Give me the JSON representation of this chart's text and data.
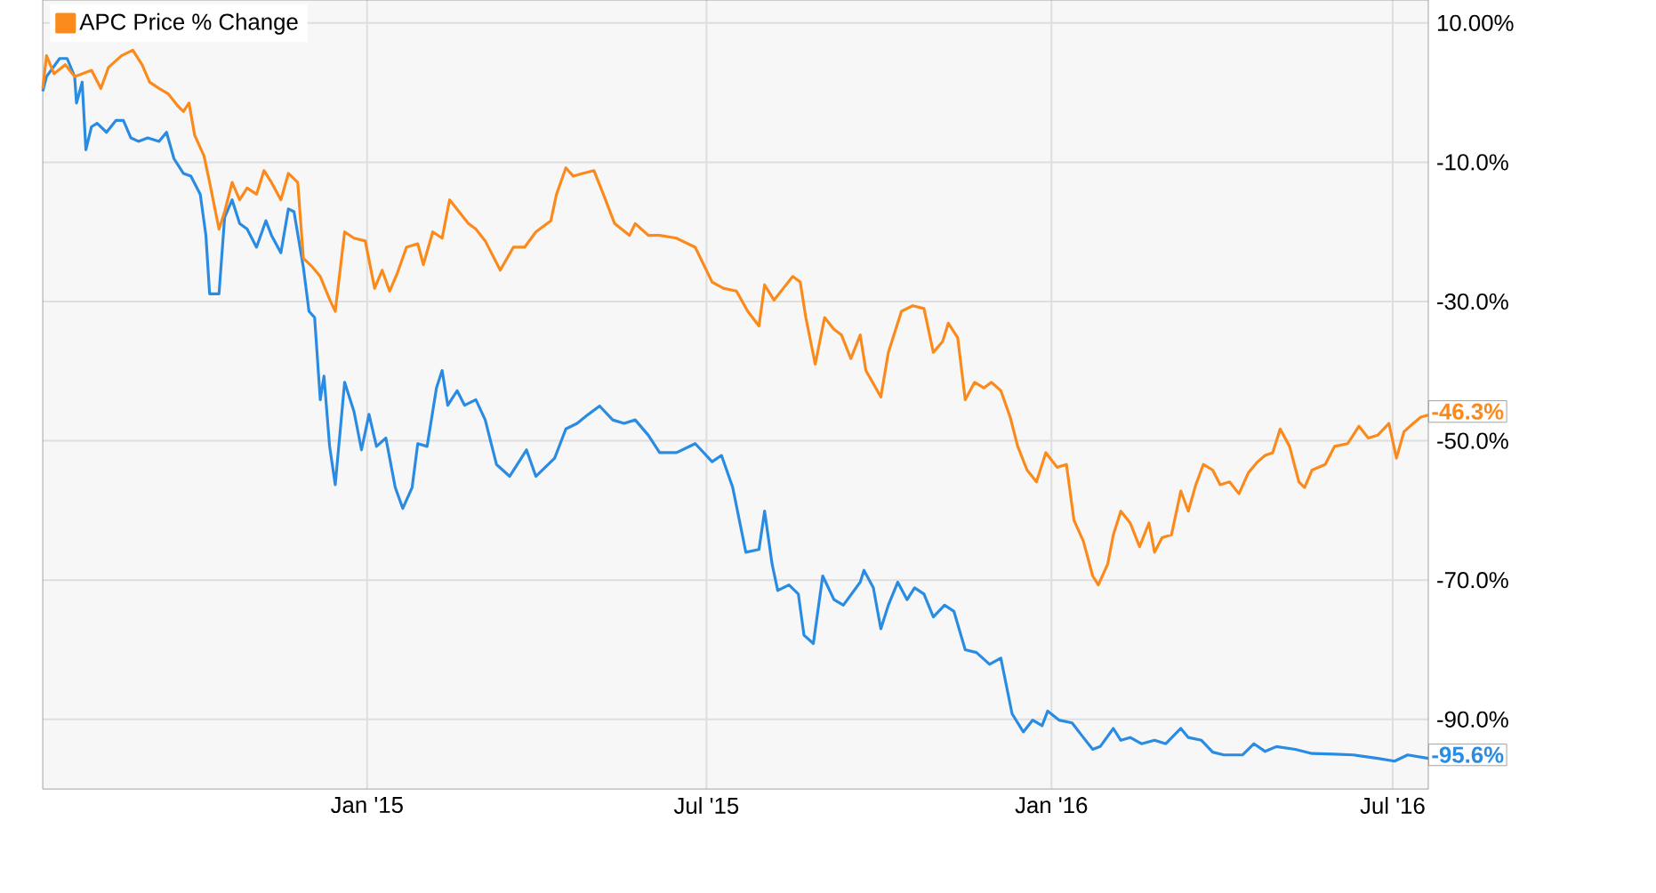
{
  "chart_data": {
    "type": "line",
    "xlim": [
      "2014-07-12",
      "2016-07-20"
    ],
    "xticks": [
      {
        "value": "2015-01-01",
        "label": "Jan '15"
      },
      {
        "value": "2015-07-01",
        "label": "Jul '15"
      },
      {
        "value": "2016-01-01",
        "label": "Jan '16"
      },
      {
        "value": "2016-07-01",
        "label": "Jul '16"
      }
    ],
    "ylim": [
      -100,
      13.3
    ],
    "yticks": [
      {
        "value": 10,
        "label": "10.00%"
      },
      {
        "value": -10,
        "label": "-10.0%"
      },
      {
        "value": -30,
        "label": "-30.0%"
      },
      {
        "value": -50,
        "label": "-50.0%"
      },
      {
        "value": -70,
        "label": "-70.0%"
      },
      {
        "value": -90,
        "label": "-90.0%"
      }
    ],
    "grid": true,
    "legend": "top left",
    "marker": "none",
    "line_style": "solid",
    "series": [
      {
        "color": "#2a8be2",
        "x": [
          "2014-07-12",
          "2014-07-14",
          "2014-07-21",
          "2014-07-25",
          "2014-07-29",
          "2014-07-30",
          "2014-08-02",
          "2014-08-04",
          "2014-08-07",
          "2014-08-10",
          "2014-08-15",
          "2014-08-20",
          "2014-08-24",
          "2014-08-28",
          "2014-09-01",
          "2014-09-06",
          "2014-09-12",
          "2014-09-16",
          "2014-09-20",
          "2014-09-25",
          "2014-09-29",
          "2014-10-04",
          "2014-10-07",
          "2014-10-09",
          "2014-10-14",
          "2014-10-17",
          "2014-10-21",
          "2014-10-25",
          "2014-10-29",
          "2014-11-03",
          "2014-11-08",
          "2014-11-11",
          "2014-11-16",
          "2014-11-20",
          "2014-11-23",
          "2014-11-28",
          "2014-12-01",
          "2014-12-04",
          "2014-12-07",
          "2014-12-09",
          "2014-12-12",
          "2014-12-15",
          "2014-12-20",
          "2014-12-25",
          "2014-12-29",
          "2015-01-02",
          "2015-01-06",
          "2015-01-11",
          "2015-01-16",
          "2015-01-20",
          "2015-01-25",
          "2015-01-28",
          "2015-02-02",
          "2015-02-07",
          "2015-02-10",
          "2015-02-13",
          "2015-02-18",
          "2015-02-22",
          "2015-02-28",
          "2015-03-05",
          "2015-03-11",
          "2015-03-18",
          "2015-03-23",
          "2015-03-27",
          "2015-04-01",
          "2015-04-06",
          "2015-04-11",
          "2015-04-17",
          "2015-04-23",
          "2015-04-29",
          "2015-05-05",
          "2015-05-12",
          "2015-05-18",
          "2015-05-24",
          "2015-05-31",
          "2015-06-06",
          "2015-06-15",
          "2015-06-25",
          "2015-07-04",
          "2015-07-09",
          "2015-07-15",
          "2015-07-22",
          "2015-07-29",
          "2015-08-01",
          "2015-08-05",
          "2015-08-08",
          "2015-08-14",
          "2015-08-19",
          "2015-08-22",
          "2015-08-27",
          "2015-09-01",
          "2015-09-07",
          "2015-09-12",
          "2015-09-21",
          "2015-09-23",
          "2015-09-28",
          "2015-10-02",
          "2015-10-06",
          "2015-10-11",
          "2015-10-16",
          "2015-10-20",
          "2015-10-25",
          "2015-10-30",
          "2015-11-05",
          "2015-11-10",
          "2015-11-16",
          "2015-11-22",
          "2015-11-29",
          "2015-12-05",
          "2015-12-11",
          "2015-12-17",
          "2015-12-22",
          "2015-12-27",
          "2015-12-30",
          "2016-01-05",
          "2016-01-12",
          "2016-01-18",
          "2016-01-23",
          "2016-01-27",
          "2016-02-03",
          "2016-02-07",
          "2016-02-12",
          "2016-02-18",
          "2016-02-25",
          "2016-03-02",
          "2016-03-10",
          "2016-03-14",
          "2016-03-21",
          "2016-03-27",
          "2016-04-02",
          "2016-04-12",
          "2016-04-18",
          "2016-04-24",
          "2016-04-30",
          "2016-05-10",
          "2016-05-19",
          "2016-05-31",
          "2016-06-10",
          "2016-06-23",
          "2016-07-02",
          "2016-07-09",
          "2016-07-20"
        ],
        "values": [
          0.2,
          2.3,
          4.9,
          4.9,
          2.3,
          -1.5,
          1.5,
          -8.2,
          -4.9,
          -4.4,
          -5.7,
          -4.0,
          -4.0,
          -6.5,
          -7.0,
          -6.5,
          -7.0,
          -5.7,
          -9.5,
          -11.6,
          -12.0,
          -14.6,
          -20.5,
          -28.9,
          -28.9,
          -17.9,
          -15.4,
          -18.8,
          -19.6,
          -22.2,
          -18.4,
          -20.5,
          -23.0,
          -16.7,
          -17.1,
          -25.1,
          -31.4,
          -32.3,
          -44.1,
          -40.7,
          -50.8,
          -56.3,
          -41.6,
          -45.8,
          -51.3,
          -46.2,
          -50.8,
          -49.6,
          -56.7,
          -59.7,
          -56.7,
          -50.4,
          -50.8,
          -42.4,
          -39.9,
          -44.9,
          -42.8,
          -44.9,
          -44.1,
          -47.0,
          -53.4,
          -55.1,
          -53.0,
          -51.3,
          -55.1,
          -53.8,
          -52.5,
          -48.3,
          -47.5,
          -46.2,
          -45.0,
          -47.0,
          -47.5,
          -47.0,
          -49.2,
          -51.7,
          -51.7,
          -50.4,
          -53.0,
          -52.1,
          -56.7,
          -66.0,
          -65.6,
          -60.1,
          -67.7,
          -71.5,
          -70.7,
          -72.0,
          -77.9,
          -79.1,
          -69.4,
          -72.8,
          -73.6,
          -70.3,
          -68.6,
          -71.1,
          -77.0,
          -73.6,
          -70.3,
          -72.8,
          -71.1,
          -72.0,
          -75.3,
          -73.6,
          -74.5,
          -80.0,
          -80.4,
          -82.1,
          -81.2,
          -89.2,
          -91.8,
          -90.1,
          -90.9,
          -88.8,
          -90.1,
          -90.5,
          -92.6,
          -94.3,
          -93.9,
          -91.3,
          -93.0,
          -92.6,
          -93.5,
          -93.0,
          -93.5,
          -91.3,
          -92.6,
          -93.0,
          -94.7,
          -95.1,
          -95.1,
          -93.5,
          -94.6,
          -93.9,
          -94.3,
          -94.9,
          -95.0,
          -95.1,
          -95.6,
          -96.0,
          -95.1,
          -95.6
        ]
      },
      {
        "name": "APC Price % Change",
        "color": "#fb8a1c",
        "x": [
          "2014-07-12",
          "2014-07-14",
          "2014-07-18",
          "2014-07-24",
          "2014-07-29",
          "2014-08-02",
          "2014-08-07",
          "2014-08-12",
          "2014-08-16",
          "2014-08-23",
          "2014-08-29",
          "2014-09-03",
          "2014-09-07",
          "2014-09-12",
          "2014-09-17",
          "2014-09-22",
          "2014-09-25",
          "2014-09-28",
          "2014-10-01",
          "2014-10-06",
          "2014-10-09",
          "2014-10-14",
          "2014-10-17",
          "2014-10-21",
          "2014-10-25",
          "2014-10-29",
          "2014-11-03",
          "2014-11-07",
          "2014-11-11",
          "2014-11-16",
          "2014-11-20",
          "2014-11-25",
          "2014-11-28",
          "2014-12-03",
          "2014-12-07",
          "2014-12-12",
          "2014-12-15",
          "2014-12-20",
          "2014-12-25",
          "2014-12-31",
          "2015-01-05",
          "2015-01-09",
          "2015-01-13",
          "2015-01-17",
          "2015-01-22",
          "2015-01-28",
          "2015-01-31",
          "2015-02-05",
          "2015-02-10",
          "2015-02-14",
          "2015-02-19",
          "2015-02-24",
          "2015-02-28",
          "2015-03-05",
          "2015-03-13",
          "2015-03-20",
          "2015-03-26",
          "2015-04-01",
          "2015-04-09",
          "2015-04-12",
          "2015-04-17",
          "2015-04-21",
          "2015-04-26",
          "2015-05-02",
          "2015-05-07",
          "2015-05-13",
          "2015-05-21",
          "2015-05-24",
          "2015-05-31",
          "2015-06-06",
          "2015-06-15",
          "2015-06-25",
          "2015-07-04",
          "2015-07-10",
          "2015-07-17",
          "2015-07-23",
          "2015-07-29",
          "2015-08-01",
          "2015-08-06",
          "2015-08-11",
          "2015-08-16",
          "2015-08-20",
          "2015-08-23",
          "2015-08-28",
          "2015-09-02",
          "2015-09-07",
          "2015-09-11",
          "2015-09-16",
          "2015-09-21",
          "2015-09-24",
          "2015-10-02",
          "2015-10-06",
          "2015-10-13",
          "2015-10-19",
          "2015-10-25",
          "2015-10-30",
          "2015-11-04",
          "2015-11-07",
          "2015-11-12",
          "2015-11-16",
          "2015-11-21",
          "2015-11-26",
          "2015-11-30",
          "2015-12-05",
          "2015-12-10",
          "2015-12-14",
          "2015-12-19",
          "2015-12-24",
          "2015-12-29",
          "2016-01-04",
          "2016-01-09",
          "2016-01-13",
          "2016-01-18",
          "2016-01-23",
          "2016-01-26",
          "2016-01-31",
          "2016-02-03",
          "2016-02-07",
          "2016-02-12",
          "2016-02-17",
          "2016-02-22",
          "2016-02-25",
          "2016-02-29",
          "2016-03-05",
          "2016-03-10",
          "2016-03-14",
          "2016-03-18",
          "2016-03-22",
          "2016-03-27",
          "2016-03-31",
          "2016-04-05",
          "2016-04-10",
          "2016-04-15",
          "2016-04-20",
          "2016-04-24",
          "2016-04-28",
          "2016-05-02",
          "2016-05-07",
          "2016-05-12",
          "2016-05-15",
          "2016-05-19",
          "2016-05-26",
          "2016-05-31",
          "2016-06-07",
          "2016-06-13",
          "2016-06-18",
          "2016-06-23",
          "2016-06-29",
          "2016-07-03",
          "2016-07-07",
          "2016-07-12",
          "2016-07-16",
          "2016-07-20"
        ],
        "values": [
          0.6,
          5.3,
          2.7,
          4.0,
          2.3,
          2.7,
          3.2,
          0.6,
          3.6,
          5.3,
          6.1,
          4.0,
          1.5,
          0.6,
          -0.2,
          -1.9,
          -2.7,
          -1.5,
          -6.1,
          -9.1,
          -12.9,
          -19.6,
          -17.1,
          -12.9,
          -15.4,
          -13.7,
          -14.6,
          -11.2,
          -12.9,
          -15.4,
          -11.6,
          -12.9,
          -23.8,
          -25.1,
          -26.4,
          -29.7,
          -31.4,
          -20.0,
          -20.9,
          -21.3,
          -28.1,
          -25.5,
          -28.5,
          -26.0,
          -22.2,
          -21.7,
          -24.7,
          -20.0,
          -20.9,
          -15.4,
          -17.1,
          -18.8,
          -19.6,
          -21.3,
          -25.5,
          -22.2,
          -22.2,
          -20.0,
          -18.4,
          -14.6,
          -10.8,
          -12.0,
          -11.6,
          -11.2,
          -14.6,
          -18.8,
          -20.5,
          -18.8,
          -20.5,
          -20.5,
          -20.9,
          -22.2,
          -27.2,
          -28.1,
          -28.5,
          -31.4,
          -33.5,
          -27.6,
          -29.8,
          -28.1,
          -26.4,
          -27.2,
          -32.3,
          -39.0,
          -32.3,
          -34.0,
          -34.8,
          -38.2,
          -34.8,
          -39.9,
          -43.7,
          -37.3,
          -31.4,
          -30.6,
          -31.0,
          -37.3,
          -35.7,
          -33.1,
          -35.2,
          -44.1,
          -41.6,
          -42.4,
          -41.6,
          -42.8,
          -46.6,
          -50.8,
          -54.2,
          -55.9,
          -51.7,
          -53.8,
          -53.4,
          -61.4,
          -64.4,
          -69.4,
          -70.7,
          -67.7,
          -63.5,
          -60.1,
          -61.8,
          -65.2,
          -61.8,
          -66.0,
          -63.9,
          -63.5,
          -57.2,
          -60.1,
          -56.3,
          -53.4,
          -54.2,
          -56.3,
          -55.9,
          -57.6,
          -54.6,
          -53.0,
          -52.1,
          -51.7,
          -48.3,
          -50.8,
          -55.9,
          -56.7,
          -54.2,
          -53.4,
          -50.8,
          -50.4,
          -47.9,
          -49.6,
          -49.2,
          -47.5,
          -52.5,
          -48.7,
          -47.5,
          -46.6,
          -46.3
        ]
      }
    ],
    "annotations": [
      {
        "text": "-46.3%",
        "x": "2016-07-20",
        "y": -46.3
      },
      {
        "text": "-95.6%",
        "x": "2016-07-20",
        "y": -95.6
      }
    ]
  }
}
